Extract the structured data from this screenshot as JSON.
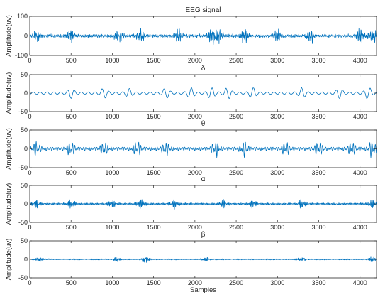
{
  "chart_data": {
    "type": "line",
    "series_color": "#0072BD",
    "shared_xlim": [
      0,
      4200
    ],
    "shared_xticks": [
      0,
      500,
      1000,
      1500,
      2000,
      2500,
      3000,
      3500,
      4000
    ],
    "xlabel": "Samples",
    "panels": [
      {
        "title": "EEG signal",
        "ylabel": "Amplitude(uv)",
        "ylim": [
          -100,
          100
        ],
        "yticks": [
          100,
          0,
          -100
        ],
        "frequency_band": "raw",
        "approx_peak_amplitude": 55,
        "bursts": [
          {
            "x": 80,
            "amplitude": 35
          },
          {
            "x": 500,
            "amplitude": 40
          },
          {
            "x": 1080,
            "amplitude": 35
          },
          {
            "x": 1340,
            "amplitude": 45
          },
          {
            "x": 1800,
            "amplitude": 40
          },
          {
            "x": 2200,
            "amplitude": 45
          },
          {
            "x": 2300,
            "amplitude": 45
          },
          {
            "x": 2600,
            "amplitude": 40
          },
          {
            "x": 3000,
            "amplitude": 35
          },
          {
            "x": 3400,
            "amplitude": 40
          },
          {
            "x": 4000,
            "amplitude": 45
          },
          {
            "x": 4150,
            "amplitude": 55
          }
        ]
      },
      {
        "title": "δ",
        "ylabel": "Amplitude(uv)",
        "ylim": [
          -50,
          50
        ],
        "yticks": [
          50,
          0,
          -50
        ],
        "frequency_band": "delta",
        "approx_peak_amplitude": 15,
        "bursts": [
          {
            "x": 500,
            "amplitude": 12
          },
          {
            "x": 900,
            "amplitude": 12
          },
          {
            "x": 1200,
            "amplitude": 10
          },
          {
            "x": 1650,
            "amplitude": 12
          },
          {
            "x": 1950,
            "amplitude": 13
          },
          {
            "x": 2200,
            "amplitude": 15
          },
          {
            "x": 2400,
            "amplitude": 14
          },
          {
            "x": 2700,
            "amplitude": 13
          },
          {
            "x": 3300,
            "amplitude": 12
          },
          {
            "x": 3750,
            "amplitude": 12
          },
          {
            "x": 4100,
            "amplitude": 14
          }
        ]
      },
      {
        "title": "θ",
        "ylabel": "Amplitude(uv)",
        "ylim": [
          -50,
          50
        ],
        "yticks": [
          50,
          0,
          -50
        ],
        "frequency_band": "theta",
        "approx_peak_amplitude": 25,
        "bursts": [
          {
            "x": 80,
            "amplitude": 18
          },
          {
            "x": 500,
            "amplitude": 20
          },
          {
            "x": 900,
            "amplitude": 18
          },
          {
            "x": 1300,
            "amplitude": 20
          },
          {
            "x": 1650,
            "amplitude": 18
          },
          {
            "x": 2250,
            "amplitude": 25
          },
          {
            "x": 2600,
            "amplitude": 20
          },
          {
            "x": 3100,
            "amplitude": 18
          },
          {
            "x": 3500,
            "amplitude": 20
          },
          {
            "x": 3900,
            "amplitude": 18
          },
          {
            "x": 4150,
            "amplitude": 24
          }
        ]
      },
      {
        "title": "α",
        "ylabel": "Amplitude(uv)",
        "ylim": [
          -50,
          50
        ],
        "yticks": [
          50,
          0,
          -50
        ],
        "frequency_band": "alpha",
        "approx_peak_amplitude": 15,
        "bursts": [
          {
            "x": 80,
            "amplitude": 12
          },
          {
            "x": 500,
            "amplitude": 12
          },
          {
            "x": 1000,
            "amplitude": 10
          },
          {
            "x": 1350,
            "amplitude": 15
          },
          {
            "x": 1750,
            "amplitude": 12
          },
          {
            "x": 2350,
            "amplitude": 12
          },
          {
            "x": 2700,
            "amplitude": 11
          },
          {
            "x": 3300,
            "amplitude": 12
          },
          {
            "x": 4150,
            "amplitude": 13
          }
        ]
      },
      {
        "title": "β",
        "ylabel": "Amplitude(uv)",
        "ylim": [
          -50,
          50
        ],
        "yticks": [
          50,
          0,
          -50
        ],
        "frequency_band": "beta",
        "approx_peak_amplitude": 10,
        "bursts": [
          {
            "x": 100,
            "amplitude": 8
          },
          {
            "x": 1050,
            "amplitude": 8
          },
          {
            "x": 1400,
            "amplitude": 10
          },
          {
            "x": 2150,
            "amplitude": 9
          },
          {
            "x": 3300,
            "amplitude": 7
          },
          {
            "x": 4150,
            "amplitude": 8
          }
        ]
      }
    ]
  }
}
